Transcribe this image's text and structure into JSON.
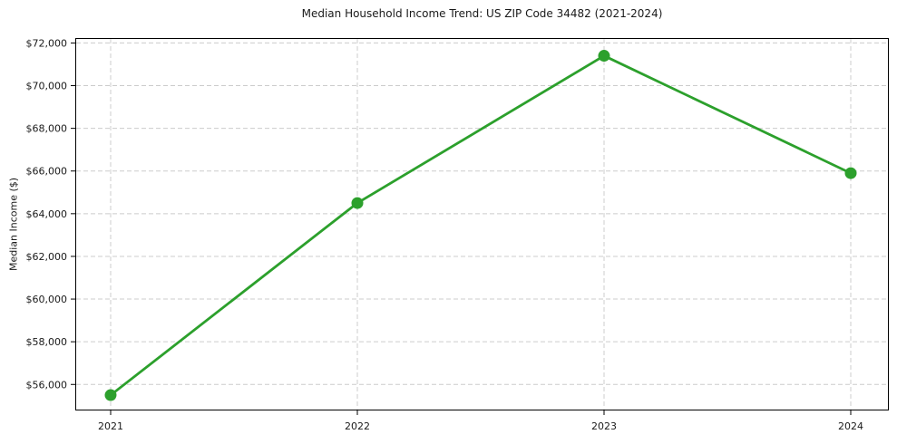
{
  "chart_data": {
    "type": "line",
    "title": "Median Household Income Trend: US ZIP Code 34482 (2021-2024)",
    "xlabel": "",
    "ylabel": "Median Income ($)",
    "categories": [
      "2021",
      "2022",
      "2023",
      "2024"
    ],
    "values": [
      55500,
      64500,
      71400,
      65900
    ],
    "ylim": [
      54780,
      72230
    ],
    "yticks": [
      56000,
      58000,
      60000,
      62000,
      64000,
      66000,
      68000,
      70000,
      72000
    ],
    "ytick_labels": [
      "$56,000",
      "$58,000",
      "$60,000",
      "$62,000",
      "$64,000",
      "$66,000",
      "$68,000",
      "$70,000",
      "$72,000"
    ],
    "grid": true,
    "grid_line_style": "dashed",
    "legend_position": "none",
    "line_color": "#2ca02c",
    "marker": "circle",
    "grid_color": "#cccccc",
    "spine_color": "#000000",
    "text_color": "#1a1a1a",
    "background_color": "#ffffff"
  }
}
